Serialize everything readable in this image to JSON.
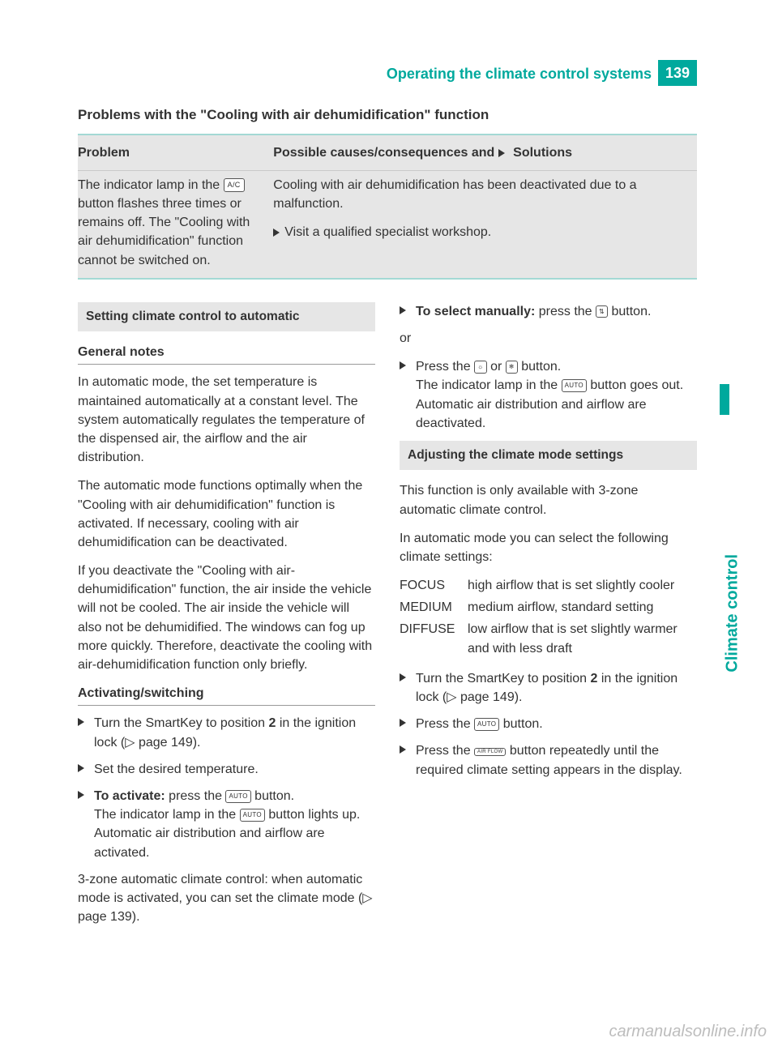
{
  "header": {
    "title": "Operating the climate control systems",
    "page_number": "139",
    "side_tab": "Climate control"
  },
  "problems_section": {
    "title": "Problems with the \"Cooling with air dehumidification\" function",
    "col_problem": "Problem",
    "col_solution_prefix": "Possible causes/consequences and ",
    "col_solution_suffix": " Solutions",
    "problem_text_1": "The indicator lamp in the ",
    "problem_icon": "A/C",
    "problem_text_2": " button flashes three times or remains off. The \"Cooling with air dehumidification\" function cannot be switched on.",
    "solution_para": "Cooling with air dehumidification has been deactivated due to a malfunction.",
    "solution_step": "Visit a qualified specialist workshop."
  },
  "left": {
    "heading1": "Setting climate control to automatic",
    "sub1": "General notes",
    "p1": "In automatic mode, the set temperature is maintained automatically at a constant level. The system automatically regulates the temperature of the dispensed air, the airflow and the air distribution.",
    "p2": "The automatic mode functions optimally when the \"Cooling with air dehumidification\" function is activated. If necessary, cooling with air dehumidification can be deactivated.",
    "p3": "If you deactivate the \"Cooling with air-dehumidification\" function, the air inside the vehicle will not be cooled. The air inside the vehicle will also not be dehumidified. The windows can fog up more quickly. Therefore, deactivate the cooling with air-dehumidification function only briefly.",
    "sub2": "Activating/switching",
    "step1a": "Turn the SmartKey to position ",
    "step1b": "2",
    "step1c": " in the ignition lock (▷ page 149).",
    "step2": "Set the desired temperature.",
    "step3_label": "To activate:",
    "step3a": " press the ",
    "step3_icon": "AUTO",
    "step3b": " button.",
    "step3c": "The indicator lamp in the ",
    "step3d": " button lights up. Automatic air distribution and airflow are activated.",
    "p4": "3-zone automatic climate control: when automatic mode is activated, you can set the climate mode (▷ page 139)."
  },
  "right": {
    "step4_label": "To select manually:",
    "step4a": " press the ",
    "step4_icon": "⇅",
    "step4b": " button.",
    "or": "or",
    "step5a": "Press the ",
    "step5_icon1": "☼",
    "step5_mid": " or ",
    "step5_icon2": "❄",
    "step5b": " button.",
    "step5c": "The indicator lamp in the ",
    "step5_icon3": "AUTO",
    "step5d": " button goes out. Automatic air distribution and airflow are deactivated.",
    "heading2": "Adjusting the climate mode settings",
    "p5": "This function is only available with 3-zone automatic climate control.",
    "p6": "In automatic mode you can select the following climate settings:",
    "modes": [
      {
        "label": "FOCUS",
        "desc": "high airflow that is set slightly cooler"
      },
      {
        "label": "MEDIUM",
        "desc": "medium airflow, standard setting"
      },
      {
        "label": "DIFFUSE",
        "desc": "low airflow that is set slightly warmer and with less draft"
      }
    ],
    "step6a": "Turn the SmartKey to position ",
    "step6b": "2",
    "step6c": " in the ignition lock (▷ page 149).",
    "step7a": "Press the ",
    "step7_icon": "AUTO",
    "step7b": " button.",
    "step8a": "Press the ",
    "step8_icon": "AIR FLOW",
    "step8b": " button repeatedly until the required climate setting appears in the display."
  },
  "watermark": "carmanualsonline.info",
  "colors": {
    "accent": "#00a99d",
    "gray_bg": "#e6e6e6",
    "text": "#333333"
  }
}
